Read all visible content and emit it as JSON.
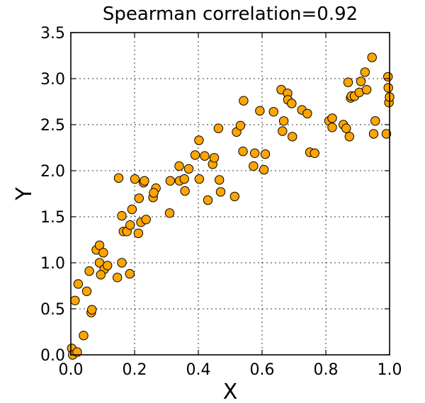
{
  "chart_data": {
    "type": "scatter",
    "title": "Spearman correlation=0.92",
    "xlabel": "X",
    "ylabel": "Y",
    "xlim": [
      0.0,
      1.0
    ],
    "ylim": [
      0.0,
      3.5
    ],
    "grid": true,
    "marker_color": "#ffa500",
    "x_ticks": [
      "0.0",
      "0.2",
      "0.4",
      "0.6",
      "0.8",
      "1.0"
    ],
    "y_ticks": [
      "0.0",
      "0.5",
      "1.0",
      "1.5",
      "2.0",
      "2.5",
      "3.0",
      "3.5"
    ],
    "x_tick_values": [
      0.0,
      0.2,
      0.4,
      0.6,
      0.8,
      1.0
    ],
    "y_tick_values": [
      0.0,
      0.5,
      1.0,
      1.5,
      2.0,
      2.5,
      3.0,
      3.5
    ],
    "points": [
      [
        0.003,
        0.07
      ],
      [
        0.006,
        0.0
      ],
      [
        0.02,
        0.03
      ],
      [
        0.013,
        0.59
      ],
      [
        0.023,
        0.77
      ],
      [
        0.04,
        0.21
      ],
      [
        0.05,
        0.69
      ],
      [
        0.064,
        0.46
      ],
      [
        0.066,
        0.49
      ],
      [
        0.058,
        0.91
      ],
      [
        0.08,
        1.14
      ],
      [
        0.09,
        1.19
      ],
      [
        0.102,
        1.11
      ],
      [
        0.09,
        1.0
      ],
      [
        0.105,
        0.93
      ],
      [
        0.115,
        0.97
      ],
      [
        0.094,
        0.87
      ],
      [
        0.146,
        0.84
      ],
      [
        0.16,
        1.0
      ],
      [
        0.165,
        1.34
      ],
      [
        0.176,
        1.34
      ],
      [
        0.16,
        1.51
      ],
      [
        0.185,
        0.88
      ],
      [
        0.186,
        1.41
      ],
      [
        0.192,
        1.58
      ],
      [
        0.15,
        1.92
      ],
      [
        0.201,
        1.91
      ],
      [
        0.212,
        1.32
      ],
      [
        0.214,
        1.7
      ],
      [
        0.22,
        1.44
      ],
      [
        0.228,
        1.87
      ],
      [
        0.231,
        1.89
      ],
      [
        0.236,
        1.47
      ],
      [
        0.258,
        1.71
      ],
      [
        0.267,
        1.81
      ],
      [
        0.26,
        1.76
      ],
      [
        0.31,
        1.54
      ],
      [
        0.312,
        1.89
      ],
      [
        0.34,
        2.05
      ],
      [
        0.341,
        1.89
      ],
      [
        0.356,
        1.91
      ],
      [
        0.358,
        1.78
      ],
      [
        0.37,
        2.02
      ],
      [
        0.39,
        2.17
      ],
      [
        0.402,
        2.33
      ],
      [
        0.403,
        1.91
      ],
      [
        0.42,
        2.16
      ],
      [
        0.43,
        1.68
      ],
      [
        0.445,
        2.07
      ],
      [
        0.45,
        2.14
      ],
      [
        0.463,
        2.46
      ],
      [
        0.466,
        1.9
      ],
      [
        0.47,
        1.77
      ],
      [
        0.514,
        1.72
      ],
      [
        0.52,
        2.42
      ],
      [
        0.532,
        2.49
      ],
      [
        0.54,
        2.21
      ],
      [
        0.542,
        2.76
      ],
      [
        0.573,
        2.05
      ],
      [
        0.577,
        2.19
      ],
      [
        0.593,
        2.65
      ],
      [
        0.606,
        2.01
      ],
      [
        0.61,
        2.18
      ],
      [
        0.636,
        2.64
      ],
      [
        0.66,
        2.88
      ],
      [
        0.664,
        2.43
      ],
      [
        0.668,
        2.54
      ],
      [
        0.68,
        2.84
      ],
      [
        0.681,
        2.77
      ],
      [
        0.693,
        2.73
      ],
      [
        0.695,
        2.37
      ],
      [
        0.725,
        2.66
      ],
      [
        0.742,
        2.62
      ],
      [
        0.75,
        2.2
      ],
      [
        0.765,
        2.19
      ],
      [
        0.81,
        2.54
      ],
      [
        0.82,
        2.57
      ],
      [
        0.82,
        2.47
      ],
      [
        0.855,
        2.5
      ],
      [
        0.864,
        2.46
      ],
      [
        0.87,
        2.96
      ],
      [
        0.874,
        2.37
      ],
      [
        0.878,
        2.79
      ],
      [
        0.88,
        2.81
      ],
      [
        0.89,
        2.81
      ],
      [
        0.905,
        2.85
      ],
      [
        0.91,
        2.97
      ],
      [
        0.923,
        3.07
      ],
      [
        0.928,
        2.88
      ],
      [
        0.945,
        3.23
      ],
      [
        0.95,
        2.4
      ],
      [
        0.955,
        2.54
      ],
      [
        0.99,
        2.4
      ],
      [
        0.995,
        3.02
      ],
      [
        0.996,
        2.9
      ],
      [
        0.998,
        2.74
      ],
      [
        1.0,
        2.8
      ]
    ]
  }
}
